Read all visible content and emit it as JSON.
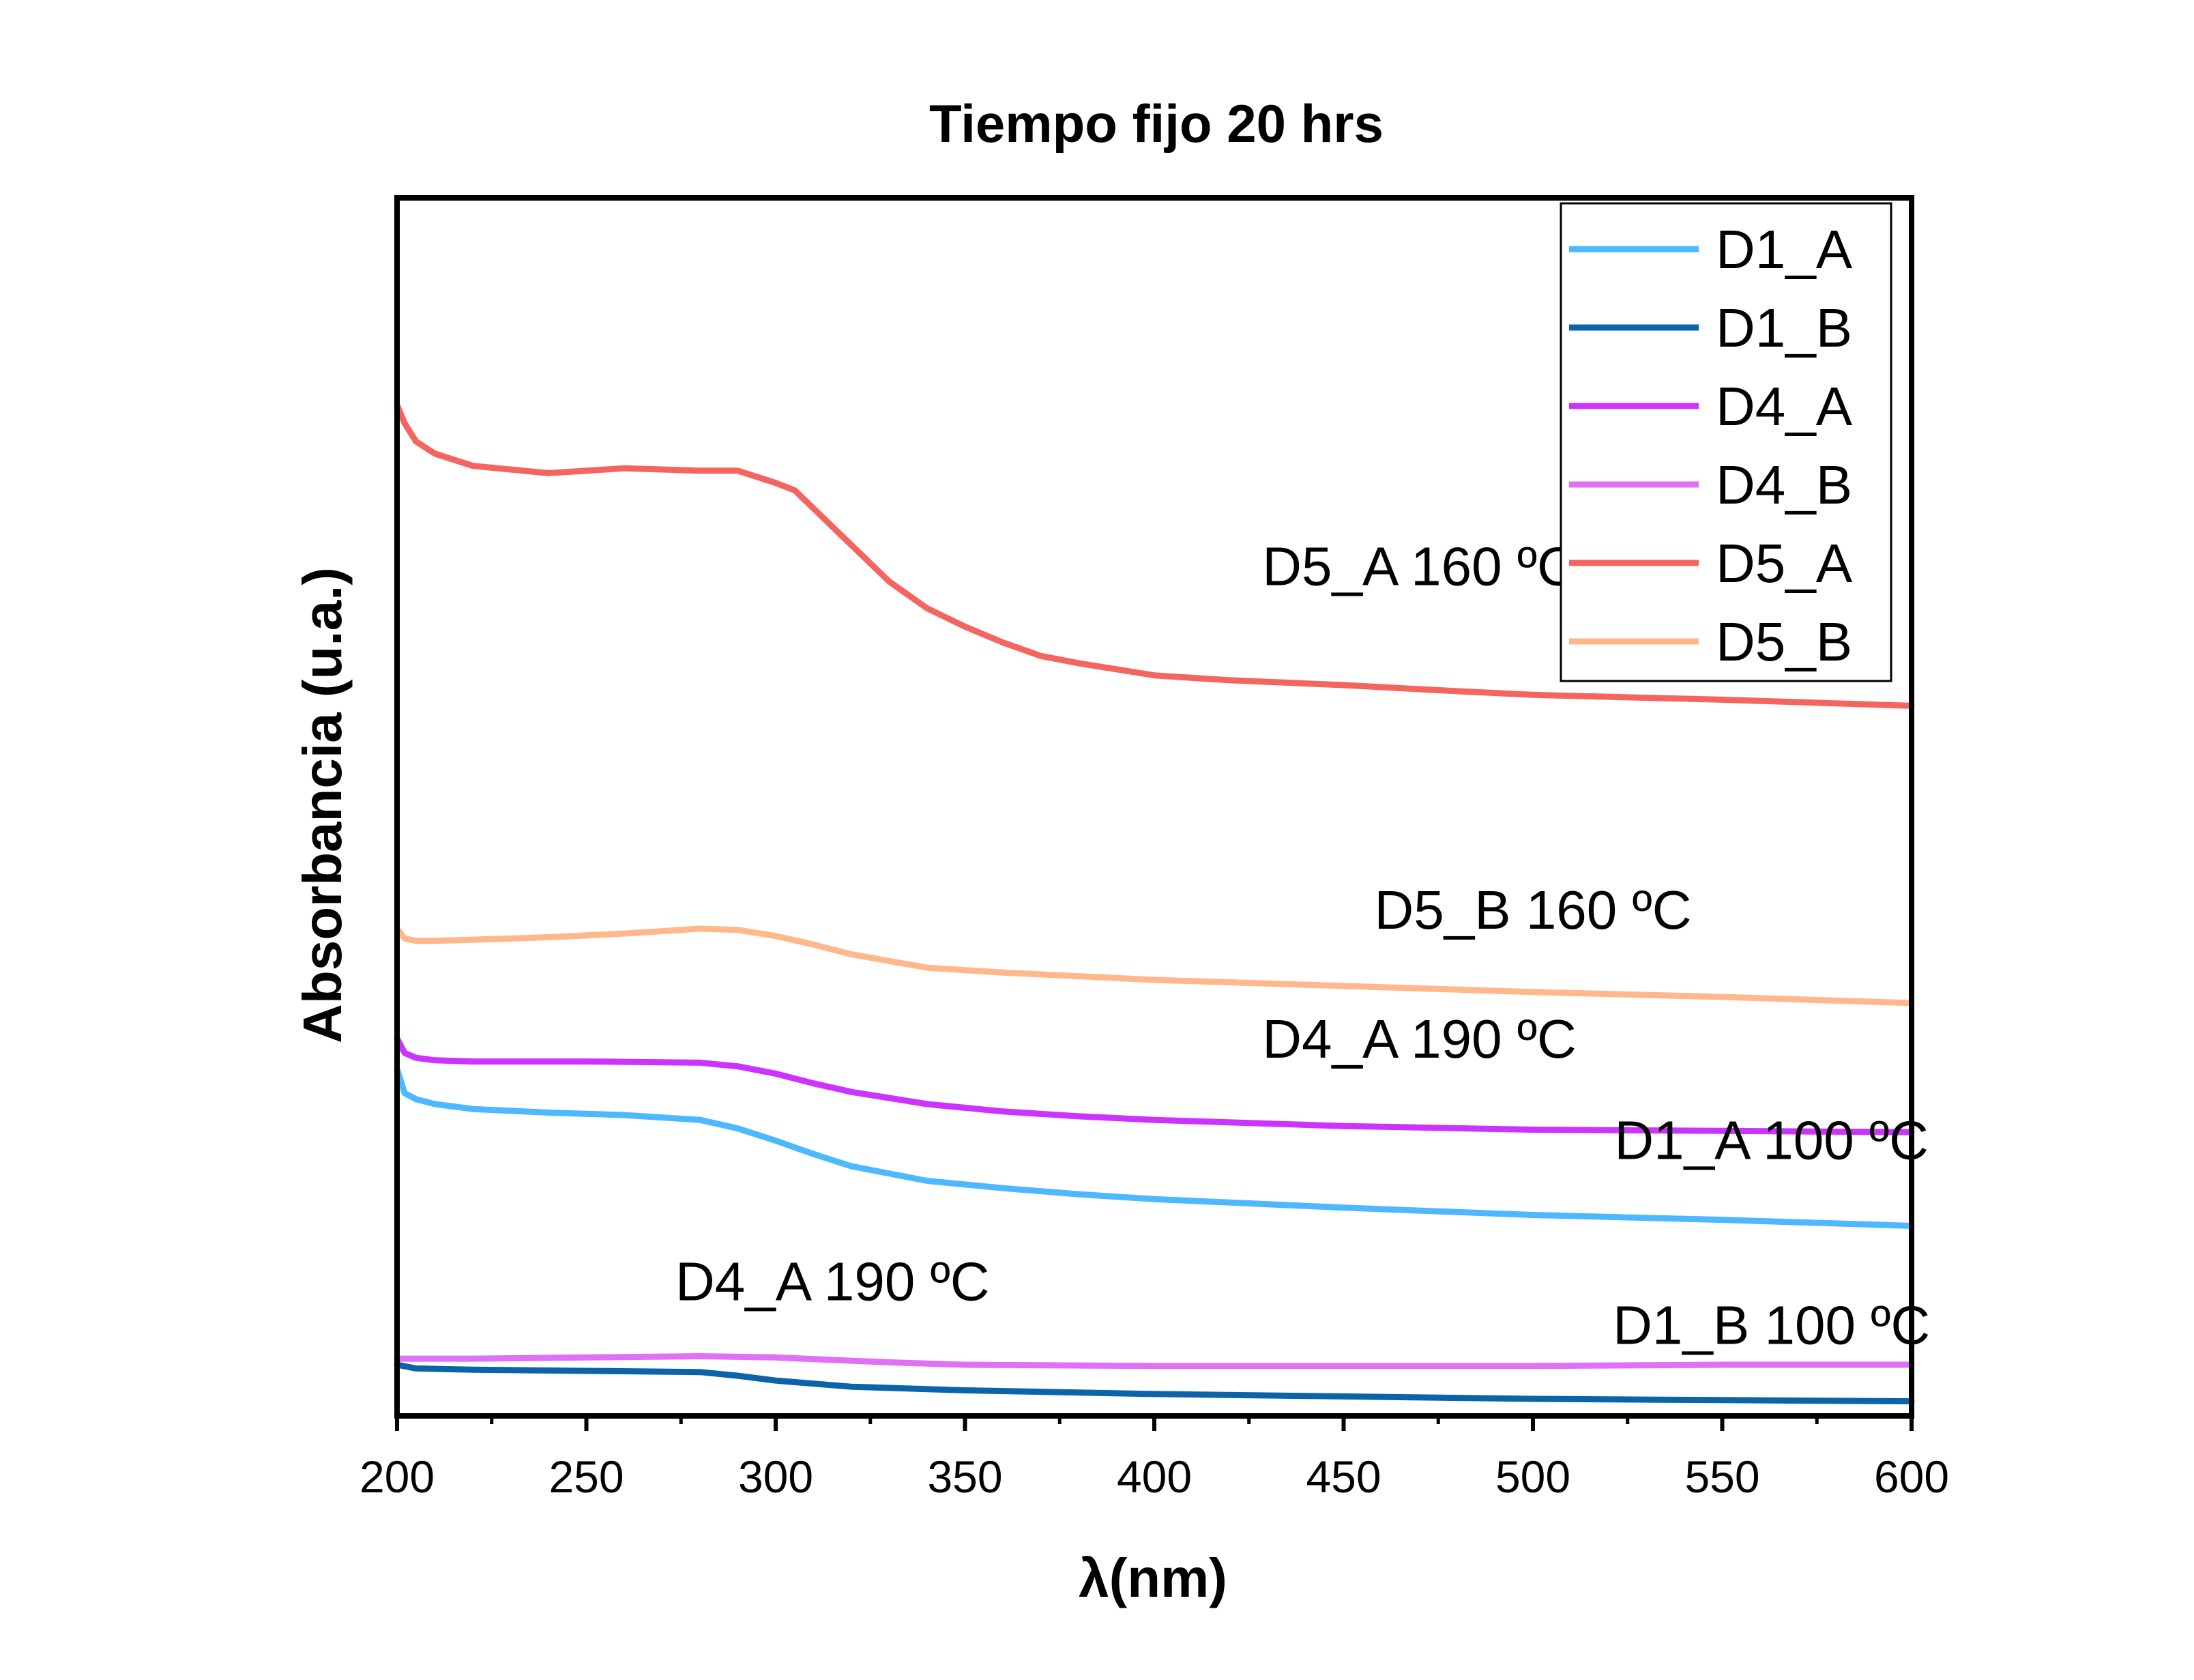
{
  "chart_data": {
    "type": "line",
    "title": "Tiempo fijo 20 hrs",
    "xlabel": "λ(nm)",
    "ylabel": "Absorbancia (u.a.)",
    "xlim": [
      200,
      600
    ],
    "ylim": [
      0,
      1
    ],
    "xticks": [
      "200",
      "250",
      "300",
      "350",
      "400",
      "450",
      "500",
      "550",
      "600"
    ],
    "y_tick_labels_shown": false,
    "legend_position": "top-right",
    "series": [
      {
        "name": "D1_A",
        "color": "#4db8ff",
        "x": [
          200,
          202,
          205,
          210,
          220,
          240,
          260,
          280,
          290,
          300,
          310,
          320,
          340,
          360,
          380,
          400,
          450,
          500,
          550,
          600
        ],
        "y": [
          0.285,
          0.265,
          0.26,
          0.256,
          0.252,
          0.249,
          0.247,
          0.243,
          0.236,
          0.226,
          0.215,
          0.205,
          0.193,
          0.187,
          0.182,
          0.178,
          0.171,
          0.165,
          0.161,
          0.156
        ]
      },
      {
        "name": "D1_B",
        "color": "#0b63a8",
        "x": [
          200,
          205,
          220,
          250,
          280,
          290,
          300,
          320,
          350,
          400,
          450,
          500,
          550,
          600
        ],
        "y": [
          0.042,
          0.039,
          0.038,
          0.037,
          0.036,
          0.033,
          0.029,
          0.024,
          0.021,
          0.018,
          0.016,
          0.014,
          0.013,
          0.012
        ]
      },
      {
        "name": "D4_A",
        "color": "#cc33ff",
        "x": [
          200,
          202,
          205,
          210,
          220,
          250,
          280,
          290,
          300,
          310,
          320,
          340,
          360,
          380,
          400,
          450,
          500,
          550,
          600
        ],
        "y": [
          0.31,
          0.298,
          0.294,
          0.292,
          0.291,
          0.291,
          0.29,
          0.287,
          0.281,
          0.273,
          0.266,
          0.256,
          0.25,
          0.246,
          0.243,
          0.238,
          0.235,
          0.234,
          0.233
        ]
      },
      {
        "name": "D4_B",
        "color": "#e070f5",
        "x": [
          200,
          220,
          250,
          280,
          300,
          330,
          350,
          400,
          450,
          500,
          550,
          600
        ],
        "y": [
          0.047,
          0.047,
          0.048,
          0.049,
          0.048,
          0.044,
          0.042,
          0.041,
          0.041,
          0.041,
          0.042,
          0.042
        ]
      },
      {
        "name": "D5_A",
        "color": "#f56560",
        "x": [
          200,
          202,
          205,
          210,
          220,
          240,
          260,
          280,
          290,
          300,
          305,
          310,
          320,
          330,
          340,
          350,
          360,
          370,
          380,
          400,
          420,
          450,
          480,
          500,
          550,
          600
        ],
        "y": [
          0.83,
          0.815,
          0.8,
          0.79,
          0.78,
          0.774,
          0.778,
          0.776,
          0.776,
          0.766,
          0.76,
          0.745,
          0.715,
          0.685,
          0.663,
          0.648,
          0.635,
          0.624,
          0.618,
          0.608,
          0.604,
          0.6,
          0.595,
          0.592,
          0.588,
          0.583
        ]
      },
      {
        "name": "D5_B",
        "color": "#ffb88c",
        "x": [
          200,
          202,
          205,
          210,
          220,
          240,
          260,
          280,
          290,
          300,
          310,
          320,
          340,
          360,
          380,
          400,
          450,
          500,
          550,
          600
        ],
        "y": [
          0.4,
          0.392,
          0.39,
          0.39,
          0.391,
          0.393,
          0.396,
          0.4,
          0.399,
          0.394,
          0.387,
          0.379,
          0.368,
          0.364,
          0.361,
          0.358,
          0.353,
          0.348,
          0.344,
          0.339
        ]
      }
    ],
    "annotations": [
      {
        "text": "D5_A 160 ºC",
        "x": 470,
        "y": 0.682
      },
      {
        "text": "D5_B 160 ºC",
        "x": 500,
        "y": 0.4
      },
      {
        "text": "D4_A 190 ºC",
        "x": 470,
        "y": 0.294
      },
      {
        "text": "D1_A 100 ºC",
        "x": 563,
        "y": 0.211
      },
      {
        "text": "D4_A 190 ºC",
        "x": 315,
        "y": 0.095
      },
      {
        "text": "D1_B 100 ºC",
        "x": 563,
        "y": 0.059
      }
    ]
  }
}
